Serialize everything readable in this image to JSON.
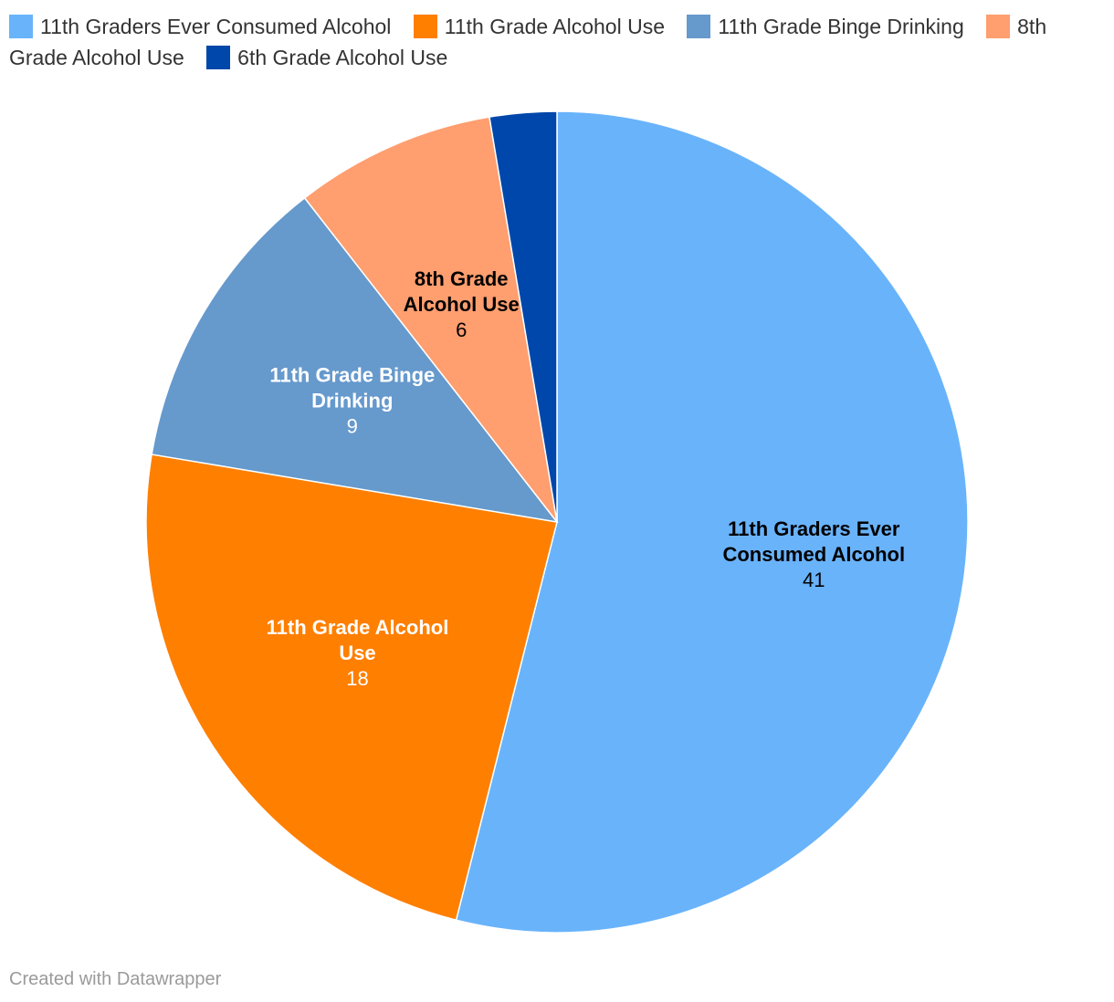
{
  "chart_data": {
    "type": "pie",
    "categories": [
      "11th Graders Ever Consumed Alcohol",
      "11th Grade Alcohol Use",
      "11th Grade Binge Drinking",
      "8th Grade Alcohol Use",
      "6th Grade Alcohol Use"
    ],
    "values": [
      41,
      18,
      9,
      6,
      2
    ],
    "value_labels": [
      "41",
      "18",
      "9",
      "6",
      ""
    ],
    "slice_label_lines": [
      [
        "11th Graders Ever",
        "Consumed Alcohol"
      ],
      [
        "11th Grade Alcohol",
        "Use"
      ],
      [
        "11th Grade Binge",
        "Drinking"
      ],
      [
        "8th Grade",
        "Alcohol Use"
      ],
      []
    ],
    "colors": [
      "#69b3fb",
      "#ff7f00",
      "#6699cc",
      "#ff9e6f",
      "#0047ab"
    ],
    "label_colors": [
      "#000000",
      "#ffffff",
      "#ffffff",
      "#000000",
      "#ffffff"
    ],
    "legend_placement": "top",
    "legend": [
      {
        "label": "11th Graders Ever Consumed Alcohol",
        "color": "#69b3fb"
      },
      {
        "label": "11th Grade Alcohol Use",
        "color": "#ff7f00"
      },
      {
        "label": "11th Grade Binge Drinking",
        "color": "#6699cc"
      },
      {
        "label": "8th Grade Alcohol Use",
        "color": "#ff9e6f"
      },
      {
        "label": "6th Grade Alcohol Use",
        "color": "#0047ab"
      }
    ]
  },
  "footer": "Created with Datawrapper"
}
